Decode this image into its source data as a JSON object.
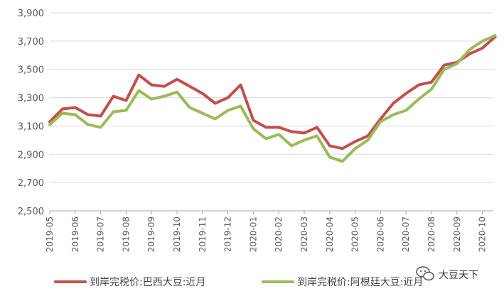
{
  "chart_data": {
    "type": "line",
    "title": "",
    "xlabel": "",
    "ylabel": "",
    "ylim": [
      2500,
      3900
    ],
    "yticks": [
      "2,500",
      "2,700",
      "2,900",
      "3,100",
      "3,300",
      "3,500",
      "3,700",
      "3,900"
    ],
    "ytick_values": [
      2500,
      2700,
      2900,
      3100,
      3300,
      3500,
      3700,
      3900
    ],
    "xticks": [
      "2019-05",
      "2019-06",
      "2019-07",
      "2019-08",
      "2019-09",
      "2019-10",
      "2019-11",
      "2019-12",
      "2020-01",
      "2020-02",
      "2020-03",
      "2020-04",
      "2020-05",
      "2020-06",
      "2020-07",
      "2020-08",
      "2020-09",
      "2020-10"
    ],
    "grid": "horizontal",
    "legend_position": "bottom",
    "series": [
      {
        "name": "到岸完税价:巴西大豆:近月",
        "color": "#c0504d",
        "x": [
          "2019-05",
          "2019-05-16",
          "2019-06",
          "2019-06-16",
          "2019-07",
          "2019-07-16",
          "2019-08",
          "2019-08-16",
          "2019-09",
          "2019-09-16",
          "2019-10",
          "2019-10-16",
          "2019-11",
          "2019-11-16",
          "2019-12",
          "2019-12-16",
          "2020-01",
          "2020-01-16",
          "2020-02",
          "2020-02-16",
          "2020-03",
          "2020-03-16",
          "2020-04",
          "2020-04-16",
          "2020-05",
          "2020-05-16",
          "2020-06",
          "2020-06-16",
          "2020-07",
          "2020-07-16",
          "2020-08",
          "2020-08-16",
          "2020-09",
          "2020-09-16",
          "2020-10",
          "2020-10-16"
        ],
        "values": [
          3130,
          3220,
          3230,
          3180,
          3170,
          3310,
          3280,
          3460,
          3390,
          3380,
          3430,
          3380,
          3330,
          3260,
          3300,
          3390,
          3140,
          3090,
          3090,
          3060,
          3050,
          3090,
          2960,
          2940,
          2990,
          3030,
          3150,
          3260,
          3330,
          3390,
          3410,
          3530,
          3550,
          3610,
          3650,
          3730
        ]
      },
      {
        "name": "到岸完税价:阿根廷大豆:近月",
        "color": "#9bbb59",
        "x": [
          "2019-05",
          "2019-05-16",
          "2019-06",
          "2019-06-16",
          "2019-07",
          "2019-07-16",
          "2019-08",
          "2019-08-16",
          "2019-09",
          "2019-09-16",
          "2019-10",
          "2019-10-16",
          "2019-11",
          "2019-11-16",
          "2019-12",
          "2019-12-16",
          "2020-01",
          "2020-01-16",
          "2020-02",
          "2020-02-16",
          "2020-03",
          "2020-03-16",
          "2020-04",
          "2020-04-16",
          "2020-05",
          "2020-05-16",
          "2020-06",
          "2020-06-16",
          "2020-07",
          "2020-07-16",
          "2020-08",
          "2020-08-16",
          "2020-09",
          "2020-09-16",
          "2020-10",
          "2020-10-16"
        ],
        "values": [
          3110,
          3190,
          3180,
          3110,
          3090,
          3200,
          3210,
          3350,
          3290,
          3310,
          3340,
          3230,
          3190,
          3150,
          3210,
          3240,
          3080,
          3010,
          3040,
          2960,
          3000,
          3030,
          2880,
          2850,
          2940,
          3000,
          3130,
          3180,
          3210,
          3290,
          3360,
          3500,
          3540,
          3640,
          3700,
          3740
        ]
      }
    ]
  },
  "watermark": {
    "text": "大豆天下",
    "icon": "chat-bubble-icon"
  }
}
